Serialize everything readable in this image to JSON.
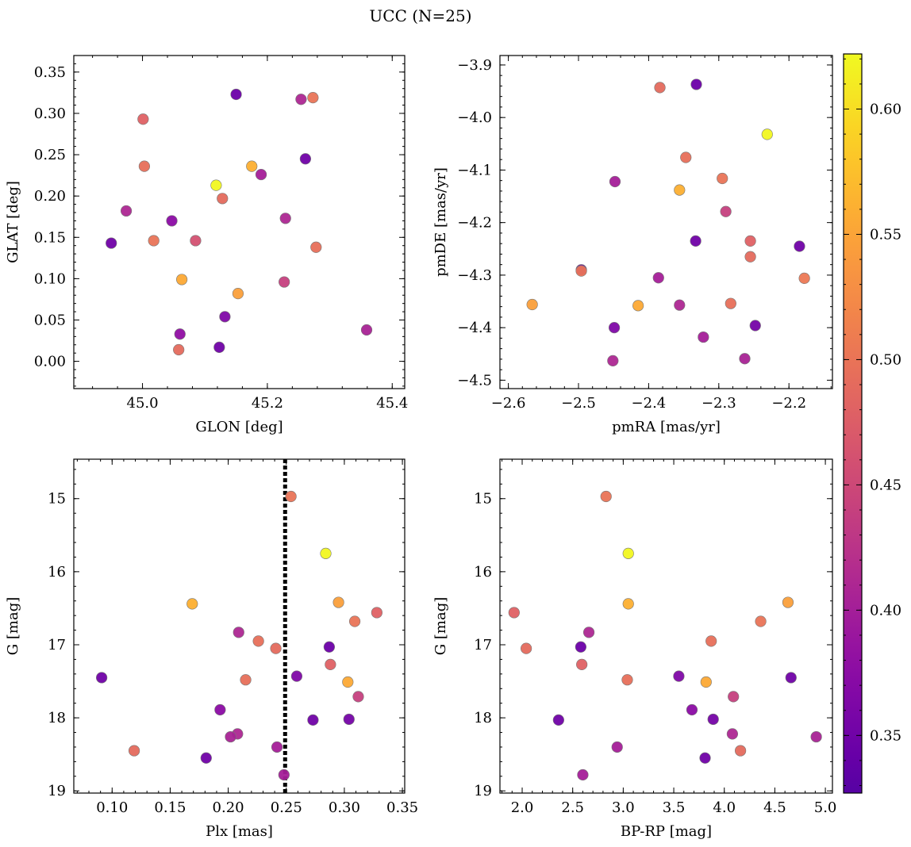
{
  "figure": {
    "title": "UCC (N=25)"
  },
  "colorbar": {
    "colormap": "plasma",
    "range": [
      0.327,
      0.622
    ],
    "ticks": [
      0.35,
      0.4,
      0.45,
      0.5,
      0.55,
      0.6
    ],
    "tick_labels": [
      "0.35",
      "0.40",
      "0.45",
      "0.50",
      "0.55",
      "0.60"
    ]
  },
  "chart_data": [
    {
      "type": "scatter",
      "xlabel": "GLON [deg]",
      "ylabel": "GLAT [deg]",
      "xlim": [
        44.89,
        45.42
      ],
      "ylim": [
        -0.033,
        0.37
      ],
      "xticks": [
        45.0,
        45.2,
        45.4
      ],
      "xtick_labels": [
        "45.0",
        "45.2",
        "45.4"
      ],
      "yticks": [
        0.0,
        0.05,
        0.1,
        0.15,
        0.2,
        0.25,
        0.3,
        0.35
      ],
      "ytick_labels": [
        "0.00",
        "0.05",
        "0.10",
        "0.15",
        "0.20",
        "0.25",
        "0.30",
        "0.35"
      ],
      "points": [
        {
          "x": 45.15,
          "y": 0.323,
          "c": 0.345
        },
        {
          "x": 45.273,
          "y": 0.319,
          "c": 0.5
        },
        {
          "x": 45.254,
          "y": 0.317,
          "c": 0.41
        },
        {
          "x": 45.001,
          "y": 0.293,
          "c": 0.48
        },
        {
          "x": 45.261,
          "y": 0.245,
          "c": 0.35
        },
        {
          "x": 45.003,
          "y": 0.236,
          "c": 0.495
        },
        {
          "x": 45.175,
          "y": 0.236,
          "c": 0.56
        },
        {
          "x": 45.19,
          "y": 0.226,
          "c": 0.4
        },
        {
          "x": 45.118,
          "y": 0.213,
          "c": 0.62
        },
        {
          "x": 45.128,
          "y": 0.197,
          "c": 0.49
        },
        {
          "x": 44.974,
          "y": 0.182,
          "c": 0.41
        },
        {
          "x": 45.229,
          "y": 0.173,
          "c": 0.41
        },
        {
          "x": 45.047,
          "y": 0.17,
          "c": 0.375
        },
        {
          "x": 44.95,
          "y": 0.143,
          "c": 0.35
        },
        {
          "x": 45.018,
          "y": 0.146,
          "c": 0.5
        },
        {
          "x": 45.085,
          "y": 0.146,
          "c": 0.46
        },
        {
          "x": 45.278,
          "y": 0.138,
          "c": 0.495
        },
        {
          "x": 45.063,
          "y": 0.099,
          "c": 0.555
        },
        {
          "x": 45.227,
          "y": 0.096,
          "c": 0.44
        },
        {
          "x": 45.153,
          "y": 0.082,
          "c": 0.545
        },
        {
          "x": 45.132,
          "y": 0.054,
          "c": 0.365
        },
        {
          "x": 45.359,
          "y": 0.038,
          "c": 0.405
        },
        {
          "x": 45.06,
          "y": 0.033,
          "c": 0.38
        },
        {
          "x": 45.123,
          "y": 0.017,
          "c": 0.35
        },
        {
          "x": 45.058,
          "y": 0.014,
          "c": 0.49
        }
      ]
    },
    {
      "type": "scatter",
      "xlabel": "pmRA [mas/yr]",
      "ylabel": "pmDE [mas/yr]",
      "xlim": [
        -2.612,
        -2.138
      ],
      "ylim": [
        -4.516,
        -3.882
      ],
      "xticks": [
        -2.6,
        -2.5,
        -2.4,
        -2.3,
        -2.2
      ],
      "xtick_labels": [
        "−2.6",
        "−2.5",
        "−2.4",
        "−2.3",
        "−2.2"
      ],
      "yticks": [
        -4.5,
        -4.4,
        -4.3,
        -4.2,
        -4.1,
        -4.0,
        -3.9
      ],
      "ytick_labels": [
        "−4.5",
        "−4.4",
        "−4.3",
        "−4.2",
        "−4.1",
        "−4.0",
        "−3.9"
      ],
      "points": [
        {
          "x": -2.332,
          "y": -3.937,
          "c": 0.345
        },
        {
          "x": -2.384,
          "y": -3.943,
          "c": 0.49
        },
        {
          "x": -2.231,
          "y": -4.032,
          "c": 0.62
        },
        {
          "x": -2.347,
          "y": -4.076,
          "c": 0.495
        },
        {
          "x": -2.295,
          "y": -4.116,
          "c": 0.5
        },
        {
          "x": -2.448,
          "y": -4.122,
          "c": 0.4
        },
        {
          "x": -2.356,
          "y": -4.138,
          "c": 0.56
        },
        {
          "x": -2.29,
          "y": -4.179,
          "c": 0.44
        },
        {
          "x": -2.333,
          "y": -4.235,
          "c": 0.35
        },
        {
          "x": -2.255,
          "y": -4.235,
          "c": 0.48
        },
        {
          "x": -2.185,
          "y": -4.245,
          "c": 0.35
        },
        {
          "x": -2.255,
          "y": -4.265,
          "c": 0.49
        },
        {
          "x": -2.496,
          "y": -4.29,
          "c": 0.345
        },
        {
          "x": -2.496,
          "y": -4.292,
          "c": 0.5
        },
        {
          "x": -2.178,
          "y": -4.306,
          "c": 0.505
        },
        {
          "x": -2.386,
          "y": -4.305,
          "c": 0.4
        },
        {
          "x": -2.566,
          "y": -4.356,
          "c": 0.545
        },
        {
          "x": -2.415,
          "y": -4.358,
          "c": 0.555
        },
        {
          "x": -2.356,
          "y": -4.357,
          "c": 0.41
        },
        {
          "x": -2.283,
          "y": -4.354,
          "c": 0.495
        },
        {
          "x": -2.449,
          "y": -4.4,
          "c": 0.365
        },
        {
          "x": -2.248,
          "y": -4.396,
          "c": 0.355
        },
        {
          "x": -2.322,
          "y": -4.418,
          "c": 0.4
        },
        {
          "x": -2.451,
          "y": -4.463,
          "c": 0.41
        },
        {
          "x": -2.263,
          "y": -4.459,
          "c": 0.405
        }
      ]
    },
    {
      "type": "scatter",
      "xlabel": "Plx [mas]",
      "ylabel": "G [mag]",
      "xlim": [
        0.067,
        0.352
      ],
      "ylim": [
        19.03,
        14.46
      ],
      "y_inverted": true,
      "vertical_line": {
        "x": 0.249,
        "style": "dotted"
      },
      "xticks": [
        0.1,
        0.15,
        0.2,
        0.25,
        0.3,
        0.35
      ],
      "xtick_labels": [
        "0.10",
        "0.15",
        "0.20",
        "0.25",
        "0.30",
        "0.35"
      ],
      "yticks": [
        15,
        16,
        17,
        18,
        19
      ],
      "ytick_labels": [
        "15",
        "16",
        "17",
        "18",
        "19"
      ],
      "points": [
        {
          "x": 0.254,
          "y": 14.97,
          "c": 0.5
        },
        {
          "x": 0.284,
          "y": 15.75,
          "c": 0.62
        },
        {
          "x": 0.169,
          "y": 16.44,
          "c": 0.56
        },
        {
          "x": 0.295,
          "y": 16.42,
          "c": 0.545
        },
        {
          "x": 0.328,
          "y": 16.56,
          "c": 0.48
        },
        {
          "x": 0.309,
          "y": 16.68,
          "c": 0.5
        },
        {
          "x": 0.209,
          "y": 16.83,
          "c": 0.41
        },
        {
          "x": 0.226,
          "y": 16.95,
          "c": 0.495
        },
        {
          "x": 0.287,
          "y": 17.03,
          "c": 0.345
        },
        {
          "x": 0.241,
          "y": 17.05,
          "c": 0.49
        },
        {
          "x": 0.288,
          "y": 17.27,
          "c": 0.48
        },
        {
          "x": 0.091,
          "y": 17.45,
          "c": 0.35
        },
        {
          "x": 0.259,
          "y": 17.43,
          "c": 0.365
        },
        {
          "x": 0.215,
          "y": 17.48,
          "c": 0.495
        },
        {
          "x": 0.303,
          "y": 17.51,
          "c": 0.555
        },
        {
          "x": 0.312,
          "y": 17.71,
          "c": 0.44
        },
        {
          "x": 0.193,
          "y": 17.89,
          "c": 0.375
        },
        {
          "x": 0.273,
          "y": 18.03,
          "c": 0.35
        },
        {
          "x": 0.304,
          "y": 18.02,
          "c": 0.355
        },
        {
          "x": 0.208,
          "y": 18.22,
          "c": 0.41
        },
        {
          "x": 0.202,
          "y": 18.26,
          "c": 0.405
        },
        {
          "x": 0.242,
          "y": 18.4,
          "c": 0.4
        },
        {
          "x": 0.119,
          "y": 18.45,
          "c": 0.49
        },
        {
          "x": 0.181,
          "y": 18.55,
          "c": 0.35
        },
        {
          "x": 0.248,
          "y": 18.78,
          "c": 0.4
        }
      ]
    },
    {
      "type": "scatter",
      "xlabel": "BP-RP [mag]",
      "ylabel": "G [mag]",
      "xlim": [
        1.78,
        5.07
      ],
      "ylim": [
        19.03,
        14.46
      ],
      "y_inverted": true,
      "xticks": [
        2.0,
        2.5,
        3.0,
        3.5,
        4.0,
        4.5,
        5.0
      ],
      "xtick_labels": [
        "2.0",
        "2.5",
        "3.0",
        "3.5",
        "4.0",
        "4.5",
        "5.0"
      ],
      "yticks": [
        15,
        16,
        17,
        18,
        19
      ],
      "ytick_labels": [
        "15",
        "16",
        "17",
        "18",
        "19"
      ],
      "points": [
        {
          "x": 2.83,
          "y": 14.97,
          "c": 0.5
        },
        {
          "x": 3.05,
          "y": 15.75,
          "c": 0.62
        },
        {
          "x": 3.05,
          "y": 16.44,
          "c": 0.56
        },
        {
          "x": 4.63,
          "y": 16.42,
          "c": 0.545
        },
        {
          "x": 1.92,
          "y": 16.56,
          "c": 0.48
        },
        {
          "x": 4.36,
          "y": 16.68,
          "c": 0.5
        },
        {
          "x": 2.66,
          "y": 16.83,
          "c": 0.41
        },
        {
          "x": 3.87,
          "y": 16.95,
          "c": 0.495
        },
        {
          "x": 2.58,
          "y": 17.03,
          "c": 0.345
        },
        {
          "x": 2.04,
          "y": 17.05,
          "c": 0.49
        },
        {
          "x": 2.59,
          "y": 17.27,
          "c": 0.48
        },
        {
          "x": 4.66,
          "y": 17.45,
          "c": 0.35
        },
        {
          "x": 3.55,
          "y": 17.43,
          "c": 0.365
        },
        {
          "x": 3.04,
          "y": 17.48,
          "c": 0.495
        },
        {
          "x": 3.82,
          "y": 17.51,
          "c": 0.555
        },
        {
          "x": 4.09,
          "y": 17.71,
          "c": 0.44
        },
        {
          "x": 3.68,
          "y": 17.89,
          "c": 0.375
        },
        {
          "x": 2.36,
          "y": 18.03,
          "c": 0.35
        },
        {
          "x": 3.89,
          "y": 18.02,
          "c": 0.355
        },
        {
          "x": 4.08,
          "y": 18.22,
          "c": 0.41
        },
        {
          "x": 4.91,
          "y": 18.26,
          "c": 0.405
        },
        {
          "x": 2.94,
          "y": 18.4,
          "c": 0.4
        },
        {
          "x": 4.16,
          "y": 18.45,
          "c": 0.49
        },
        {
          "x": 3.81,
          "y": 18.55,
          "c": 0.35
        },
        {
          "x": 2.6,
          "y": 18.78,
          "c": 0.4
        }
      ]
    }
  ]
}
